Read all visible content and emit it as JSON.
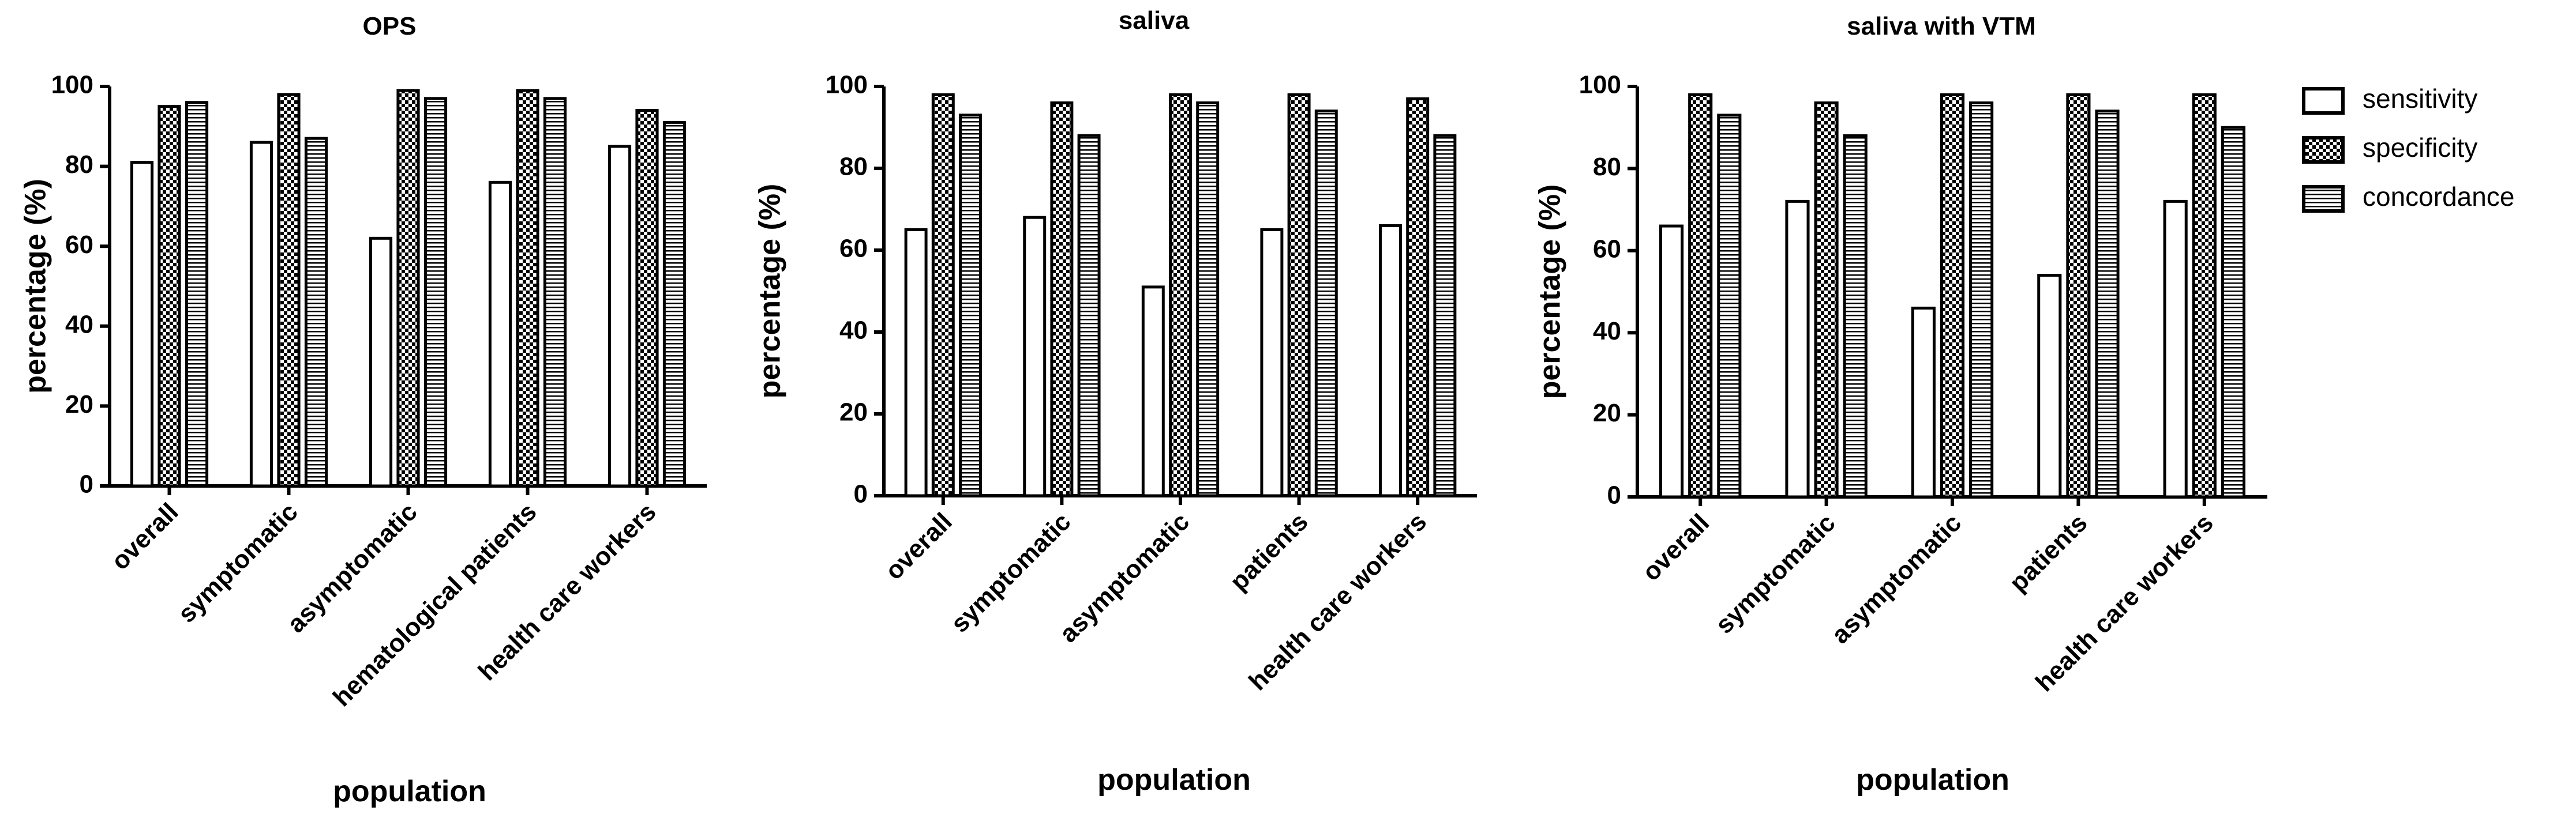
{
  "chart_data": [
    {
      "type": "bar",
      "title": "OPS",
      "xlabel": "population",
      "ylabel": "percentage (%)",
      "ylim": [
        0,
        100
      ],
      "yticks": [
        0,
        20,
        40,
        60,
        80,
        100
      ],
      "categories": [
        "overall",
        "symptomatic",
        "asymptomatic",
        "hematological patients",
        "health care workers"
      ],
      "series": [
        {
          "name": "sensitivity",
          "values": [
            81,
            86,
            62,
            76,
            85
          ]
        },
        {
          "name": "specificity",
          "values": [
            95,
            98,
            99,
            99,
            94
          ]
        },
        {
          "name": "concordance",
          "values": [
            96,
            87,
            97,
            97,
            91
          ]
        }
      ]
    },
    {
      "type": "bar",
      "title": "saliva",
      "xlabel": "population",
      "ylabel": "percentage (%)",
      "ylim": [
        0,
        100
      ],
      "yticks": [
        0,
        20,
        40,
        60,
        80,
        100
      ],
      "categories": [
        "overall",
        "symptomatic",
        "asymptomatic",
        "patients",
        "health care workers"
      ],
      "series": [
        {
          "name": "sensitivity",
          "values": [
            65,
            68,
            51,
            65,
            66
          ]
        },
        {
          "name": "specificity",
          "values": [
            98,
            96,
            98,
            98,
            97
          ]
        },
        {
          "name": "concordance",
          "values": [
            93,
            88,
            96,
            94,
            88
          ]
        }
      ]
    },
    {
      "type": "bar",
      "title": "saliva with VTM",
      "xlabel": "population",
      "ylabel": "percentage (%)",
      "ylim": [
        0,
        100
      ],
      "yticks": [
        0,
        20,
        40,
        60,
        80,
        100
      ],
      "categories": [
        "overall",
        "symptomatic",
        "asymptomatic",
        "patients",
        "health care workers"
      ],
      "series": [
        {
          "name": "sensitivity",
          "values": [
            66,
            72,
            46,
            54,
            72
          ]
        },
        {
          "name": "specificity",
          "values": [
            98,
            96,
            98,
            98,
            98
          ]
        },
        {
          "name": "concordance",
          "values": [
            93,
            88,
            96,
            94,
            90
          ]
        }
      ]
    }
  ],
  "legend": {
    "position": "right",
    "items": [
      {
        "name": "sensitivity",
        "pattern": "open"
      },
      {
        "name": "specificity",
        "pattern": "checkerboard"
      },
      {
        "name": "concordance",
        "pattern": "horizontal-lines"
      }
    ]
  }
}
